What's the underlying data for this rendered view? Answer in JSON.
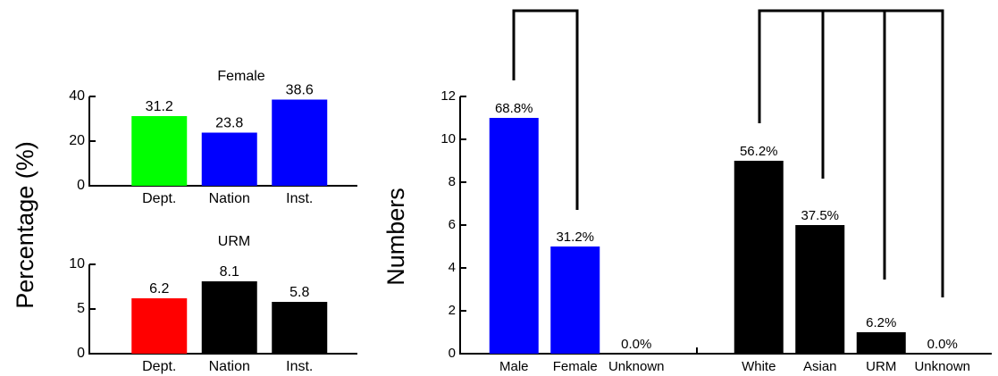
{
  "chart_data": [
    {
      "type": "bar",
      "title": "Female",
      "ylabel": "Percentage (%)",
      "categories": [
        "Dept.",
        "Nation",
        "Inst."
      ],
      "values": [
        31.2,
        23.8,
        38.6
      ],
      "colors": [
        "#00ff00",
        "#0000ff",
        "#0000ff"
      ],
      "ylim": [
        0,
        40
      ],
      "yticks": [
        0,
        20,
        40
      ]
    },
    {
      "type": "bar",
      "title": "URM",
      "categories": [
        "Dept.",
        "Nation",
        "Inst."
      ],
      "values": [
        6.2,
        8.1,
        5.8
      ],
      "colors": [
        "#ff0000",
        "#000000",
        "#000000"
      ],
      "ylim": [
        0,
        10
      ],
      "yticks": [
        0,
        5,
        10
      ]
    },
    {
      "type": "bar",
      "ylabel": "Numbers",
      "categories": [
        "Male",
        "Female",
        "Unknown",
        null,
        "White",
        "Asian",
        "URM",
        "Unknown"
      ],
      "values": [
        11,
        5,
        0,
        null,
        9,
        6,
        1,
        0
      ],
      "value_labels": [
        "68.8%",
        "31.2%",
        "0.0%",
        null,
        "56.2%",
        "37.5%",
        "6.2%",
        "0.0%"
      ],
      "colors": [
        "#0000ff",
        "#0000ff",
        "#0000ff",
        null,
        "#000000",
        "#000000",
        "#000000",
        "#000000"
      ],
      "ylim": [
        0,
        12
      ],
      "yticks": [
        0,
        2,
        4,
        6,
        8,
        10,
        12
      ]
    }
  ]
}
